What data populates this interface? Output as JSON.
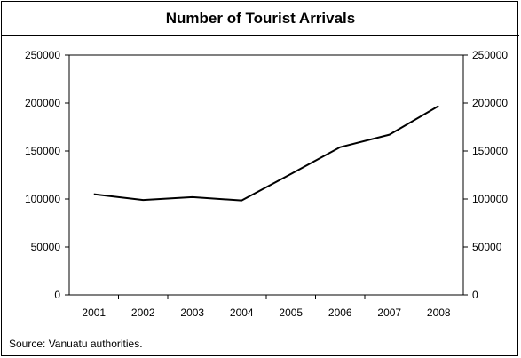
{
  "chart_data": {
    "type": "line",
    "title": "Number of Tourist Arrivals",
    "categories": [
      "2001",
      "2002",
      "2003",
      "2004",
      "2005",
      "2006",
      "2007",
      "2008"
    ],
    "series": [
      {
        "values": [
          105000,
          99000,
          102000,
          98500,
          126000,
          154000,
          167000,
          197000
        ]
      }
    ],
    "ylim": [
      0,
      250000
    ],
    "yticks": [
      0,
      50000,
      100000,
      150000,
      200000,
      250000
    ],
    "ytick_labels": [
      "0",
      "50000",
      "100000",
      "150000",
      "200000",
      "250000"
    ],
    "secondary_y_axis": true,
    "grid": false,
    "line_color": "#000000",
    "source": "Source: Vanuatu authorities."
  }
}
